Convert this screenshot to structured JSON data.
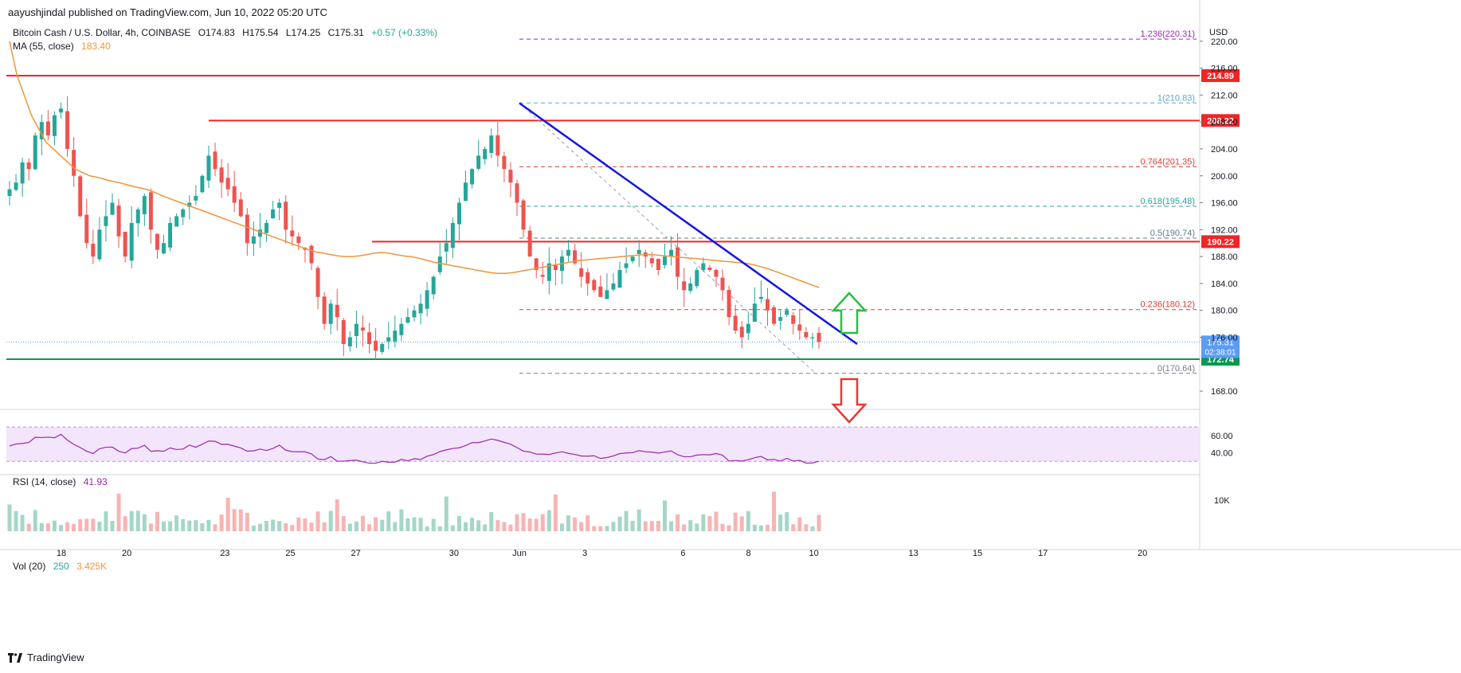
{
  "header": {
    "publisher_line": "aayushjindal published on TradingView.com, Jun 10, 2022 05:20 UTC"
  },
  "legend": {
    "symbol": "Bitcoin Cash / U.S. Dollar, 4h, COINBASE",
    "ohlc": {
      "O": "O174.83",
      "H": "H175.54",
      "L": "L174.25",
      "C": "C175.31",
      "change": "+0.57 (+0.33%)"
    },
    "ma_label": "MA (55, close)",
    "ma_value": "183.40",
    "rsi_label": "RSI (14, close)",
    "rsi_value": "41.93",
    "vol_label": "Vol (20)",
    "vol_value1": "250",
    "vol_value2": "3.425K"
  },
  "footer": {
    "brand": "TradingView"
  },
  "colors": {
    "up": "#26a69a",
    "down": "#ef5350",
    "ma": "#f0953a",
    "trend": "#1515e6",
    "support": "#089950",
    "resistance": "#f22424",
    "rsi_line": "#9c27b0",
    "rsi_band": "#f3e5fb",
    "arrow_up": "#2bbf3e",
    "arrow_down": "#e53935"
  },
  "chart_data": {
    "type": "candlestick",
    "price_axis": {
      "unit": "USD",
      "ticks": [
        "220.00",
        "216.00",
        "212.00",
        "208.00",
        "204.00",
        "200.00",
        "196.00",
        "192.00",
        "188.00",
        "184.00",
        "180.00",
        "176.00",
        "168.00"
      ],
      "ylim": [
        166,
        224
      ]
    },
    "time_axis": {
      "ticks": [
        "18",
        "20",
        "23",
        "25",
        "27",
        "30",
        "Jun",
        "3",
        "6",
        "8",
        "10",
        "13",
        "15",
        "17",
        "20"
      ]
    },
    "current_price_label": {
      "value": "175.31",
      "countdown": "02:38:01"
    },
    "horizontal_levels": [
      {
        "label": "214.89",
        "value": 214.89,
        "kind": "resistance"
      },
      {
        "label": "208.22",
        "value": 208.22,
        "kind": "resistance"
      },
      {
        "label": "190.22",
        "value": 190.22,
        "kind": "resistance"
      },
      {
        "label": "172.74",
        "value": 172.74,
        "kind": "support"
      }
    ],
    "fibonacci": [
      {
        "label": "1.236(220.31)",
        "value": 220.31,
        "color": "#9c27b0"
      },
      {
        "label": "1(210.83)",
        "value": 210.83,
        "color": "#5aa9c8"
      },
      {
        "label": "0.764(201.35)",
        "value": 201.35,
        "color": "#e53935"
      },
      {
        "label": "0.618(195.48)",
        "value": 195.48,
        "color": "#26a69a"
      },
      {
        "label": "0.5(190.74)",
        "value": 190.74,
        "color": "#607d8b"
      },
      {
        "label": "0.236(180.12)",
        "value": 180.12,
        "color": "#e53935"
      },
      {
        "label": "0(170.64)",
        "value": 170.64,
        "color": "#787b86"
      }
    ],
    "trendline": {
      "from": [
        210.8,
        0
      ],
      "to": [
        175.0,
        1
      ]
    },
    "rsi_axis": {
      "ticks": [
        "60.00",
        "40.00"
      ],
      "ylim": [
        20,
        85
      ],
      "band": [
        30,
        70
      ]
    },
    "volume_axis": {
      "ticks": [
        "10K"
      ]
    },
    "closes": [
      198,
      199,
      202,
      201,
      206,
      208,
      206,
      209,
      210,
      204,
      200,
      194,
      190,
      188,
      192,
      194,
      196,
      191,
      188,
      193,
      195,
      197,
      192,
      189,
      190,
      193,
      194,
      195,
      196,
      197,
      200,
      203,
      201,
      199,
      198,
      196,
      194,
      190,
      191,
      192,
      193,
      195,
      196,
      192,
      191,
      190,
      189,
      187,
      182,
      178,
      181,
      179,
      175,
      176,
      178,
      177,
      175,
      174,
      175,
      176,
      177,
      178,
      179,
      180,
      181,
      183,
      185,
      188,
      190,
      193,
      196,
      199,
      201,
      203,
      204,
      206,
      203,
      201,
      199,
      196,
      192,
      188,
      186,
      185,
      187,
      186,
      188,
      189,
      187,
      185,
      184,
      183,
      182,
      183,
      184,
      186,
      187,
      188,
      189,
      188,
      187,
      186,
      188,
      189,
      185,
      183,
      184,
      186,
      187,
      186,
      185,
      183,
      179,
      177,
      176,
      178,
      181,
      182,
      180,
      178,
      179,
      180,
      178,
      177,
      176,
      176,
      175.31
    ],
    "ma": [
      220,
      215,
      212,
      209,
      207,
      205,
      204,
      203,
      202,
      201,
      200.5,
      200,
      199.8,
      199.5,
      199.2,
      199,
      198.7,
      198.4,
      198.2,
      197.9,
      197.5,
      197,
      196.6,
      196.2,
      195.8,
      195.4,
      195,
      194.6,
      194.2,
      193.8,
      193.4,
      193,
      192.6,
      192.2,
      191.8,
      191.4,
      191,
      190.6,
      190.2,
      189.8,
      189.4,
      189,
      188.7,
      188.5,
      188.3,
      188.1,
      188,
      188,
      188.1,
      188.3,
      188.5,
      188.6,
      188.5,
      188.3,
      188.1,
      188,
      187.8,
      187.5,
      187.2,
      187,
      186.8,
      186.6,
      186.4,
      186.2,
      186,
      185.8,
      185.6,
      185.5,
      185.5,
      185.6,
      185.8,
      186,
      186.2,
      186.4,
      186.6,
      186.8,
      187,
      187.2,
      187.4,
      187.5,
      187.6,
      187.7,
      187.8,
      187.9,
      188,
      188.1,
      188.2,
      188.3,
      188.3,
      188.2,
      188.1,
      188,
      187.9,
      187.8,
      187.7,
      187.6,
      187.5,
      187.4,
      187.3,
      187.2,
      187.1,
      187,
      186.8,
      186.5,
      186.2,
      185.8,
      185.4,
      185,
      184.6,
      184.2,
      183.8,
      183.4
    ]
  }
}
